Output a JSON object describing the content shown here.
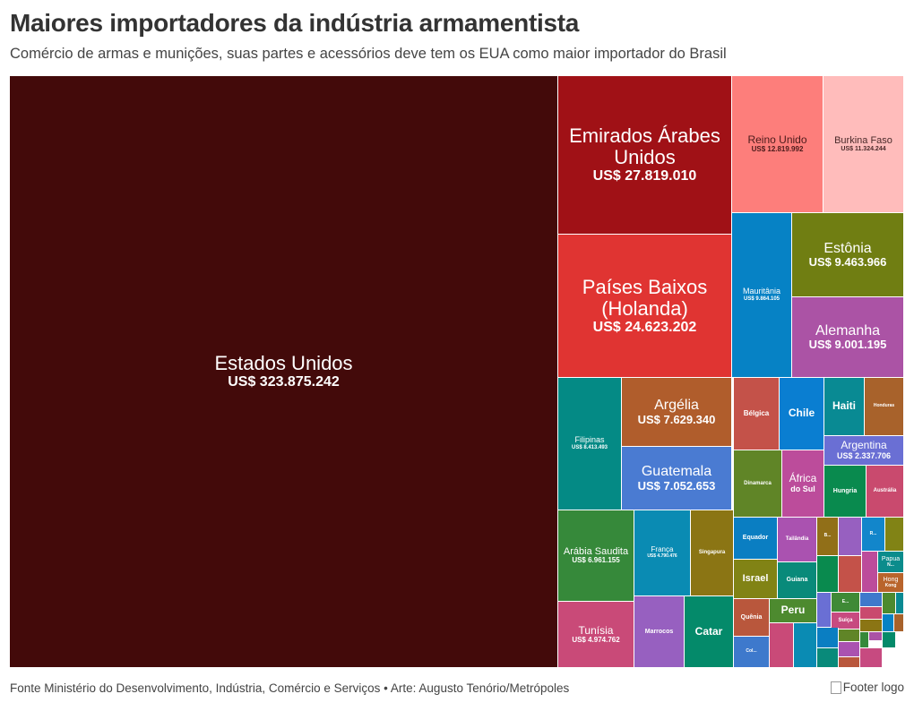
{
  "title": "Maiores importadores da indústria armamentista",
  "subtitle": "Comércio de armas e munições, suas partes e acessórios deve tem os EUA como maior importador do Brasil",
  "footer": {
    "source": "Fonte Ministério do Desenvolvimento, Indústria, Comércio e Serviços • Arte: Augusto Tenório/Metrópoles",
    "logo_alt": "Footer logo"
  },
  "chart_data": {
    "type": "treemap",
    "title": "Maiores importadores da indústria armamentista",
    "unit": "US$",
    "items": [
      {
        "name": "Estados Unidos",
        "value_label": "US$ 323.875.242",
        "value": 323875242,
        "color": "#430a0a"
      },
      {
        "name": "Emirados Árabes Unidos",
        "value_label": "US$ 27.819.010",
        "value": 27819010,
        "color": "#a01116"
      },
      {
        "name": "Países Baixos (Holanda)",
        "value_label": "US$ 24.623.202",
        "value": 24623202,
        "color": "#e03432"
      },
      {
        "name": "Reino Unido",
        "value_label": "US$ 12.819.992",
        "value": 12819992,
        "color": "#fd7e7b"
      },
      {
        "name": "Burkina Faso",
        "value_label": "US$ 11.324.244",
        "value": 11324244,
        "color": "#ffbcbb"
      },
      {
        "name": "Mauritânia",
        "value_label": "US$ 9.864.105",
        "value": 9864105,
        "color": "#0682c5"
      },
      {
        "name": "Estônia",
        "value_label": "US$ 9.463.966",
        "value": 9463966,
        "color": "#707e12"
      },
      {
        "name": "Alemanha",
        "value_label": "US$ 9.001.195",
        "value": 9001195,
        "color": "#ab53a5"
      },
      {
        "name": "Filipinas",
        "value_label": "US$ 8.413.493",
        "value": 8413493,
        "color": "#048a85"
      },
      {
        "name": "Argélia",
        "value_label": "US$ 7.629.340",
        "value": 7629340,
        "color": "#b05d2c"
      },
      {
        "name": "Guatemala",
        "value_label": "US$ 7.052.653",
        "value": 7052653,
        "color": "#4a7bd2"
      },
      {
        "name": "Arábia Saudita",
        "value_label": "US$ 6.961.155",
        "value": 6961155,
        "color": "#36893a"
      },
      {
        "name": "França",
        "value_label": "US$ 4.790.476",
        "value": 4790476,
        "color": "#0a8bb3"
      },
      {
        "name": "Singapura",
        "color": "#8b7514"
      },
      {
        "name": "Tunísia",
        "value_label": "US$ 4.974.762",
        "value": 4974762,
        "color": "#c94a78"
      },
      {
        "name": "Marrocos",
        "color": "#9760c0"
      },
      {
        "name": "Catar",
        "color": "#048a6a"
      },
      {
        "name": "Bélgica",
        "color": "#c45249"
      },
      {
        "name": "Chile",
        "color": "#0a7ed1"
      },
      {
        "name": "Haiti",
        "color": "#098a93"
      },
      {
        "name": "Honduras",
        "color": "#a8622b"
      },
      {
        "name": "Argentina",
        "value_label": "US$ 2.337.706",
        "value": 2337706,
        "color": "#6a6fd4"
      },
      {
        "name": "Dinamarca",
        "color": "#608527"
      },
      {
        "name": "África do Sul",
        "color": "#bc4c9b"
      },
      {
        "name": "Hungria",
        "color": "#098a4e"
      },
      {
        "name": "Austrália",
        "color": "#c94a6e"
      },
      {
        "name": "Equador",
        "color": "#0a7ec2"
      },
      {
        "name": "Tailândia",
        "color": "#aa52b0"
      },
      {
        "name": "Israel",
        "color": "#818315"
      },
      {
        "name": "Guiana",
        "color": "#098a7a"
      },
      {
        "name": "Quênia",
        "color": "#b9573c"
      },
      {
        "name": "Peru",
        "color": "#4d8a2f"
      },
      {
        "name": "Col...",
        "color": "#3e79cc"
      },
      {
        "name": "B...",
        "color": "#916f18"
      },
      {
        "name": "R...",
        "color": "#1286cb"
      },
      {
        "name": "Papua N...",
        "color": "#0b8c8c"
      },
      {
        "name": "Hong Kong",
        "color": "#b9642c"
      },
      {
        "name": "E...",
        "color": "#3f8a36"
      },
      {
        "name": "Suíça",
        "color": "#c74a80"
      }
    ],
    "unlabeled_colors": [
      "#9760c0",
      "#818315",
      "#098a4e",
      "#c45249",
      "#bc4c9b",
      "#c94a78",
      "#0a8bb3",
      "#6a6fd4",
      "#0a7ec2",
      "#098a7a",
      "#608527",
      "#aa52b0",
      "#b9573c",
      "#3e79cc",
      "#4d8a2f",
      "#098a93",
      "#c94a6e",
      "#8b7514",
      "#0682c5",
      "#a8622b",
      "#36893a",
      "#ab53a5",
      "#048a6a",
      "#c74a80"
    ]
  }
}
